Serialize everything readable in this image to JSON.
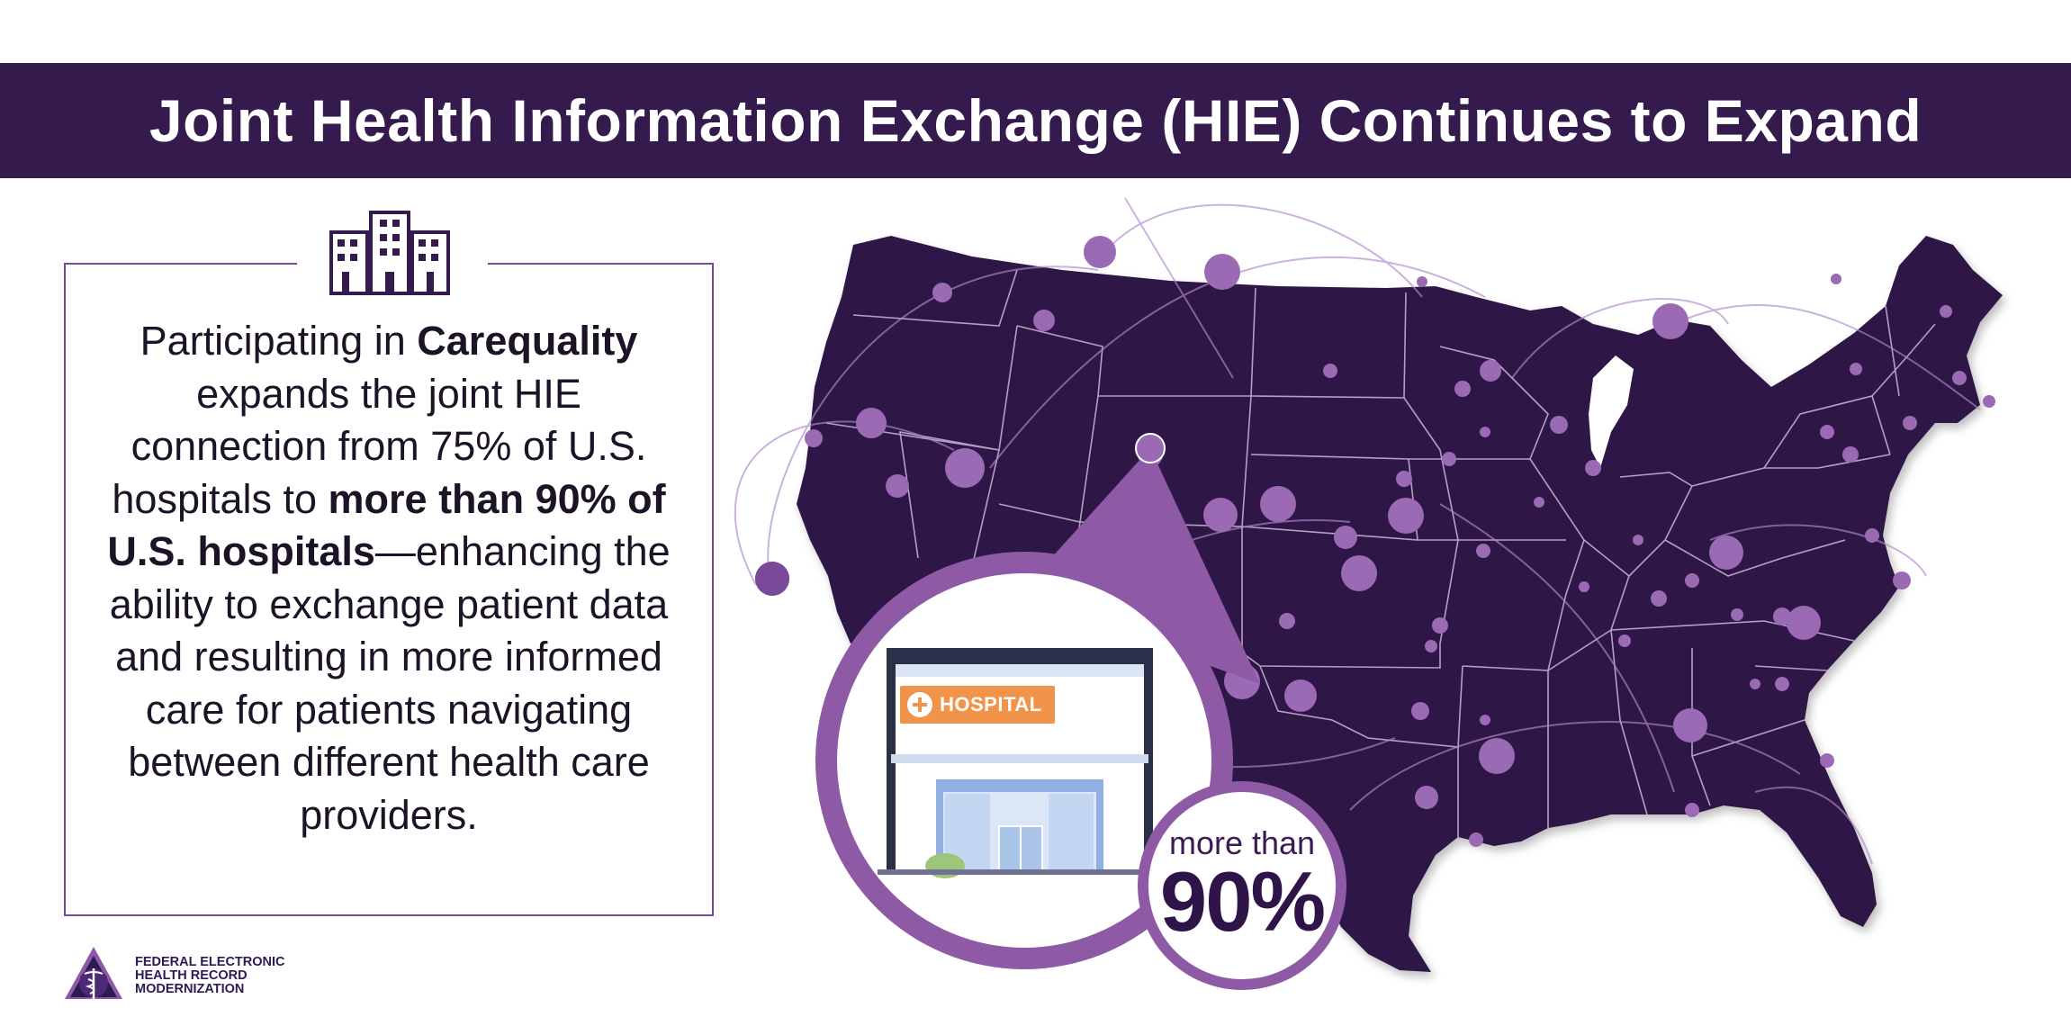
{
  "header": {
    "title": "Joint Health Information Exchange (HIE) Continues to Expand"
  },
  "info_box": {
    "icon": "buildings-icon",
    "p1": "Participating in ",
    "b1": "Carequality",
    "p2": " expands the joint HIE connection from 75% of U.S. hospitals to ",
    "b2": "more than 90% of U.S. hospitals",
    "p3": "—enhancing the ability to exchange patient data and resulting in more informed care for patients navigating between different health care providers."
  },
  "callout": {
    "hospital_sign": "HOSPITAL",
    "stat_prefix": "more than",
    "stat_value": "90%"
  },
  "logo": {
    "icon": "caduceus-logo-icon",
    "line1": "FEDERAL ELECTRONIC",
    "line2": "HEALTH RECORD",
    "line3": "MODERNIZATION"
  },
  "colors": {
    "banner": "#351a4e",
    "map_fill": "#2f1447",
    "accent": "#8e5aa6",
    "dots": "#9a6ab5",
    "sign": "#f2934a"
  }
}
